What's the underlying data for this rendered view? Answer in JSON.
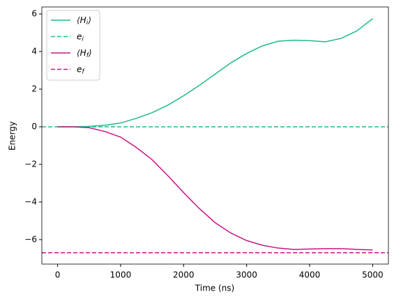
{
  "chart_data": {
    "type": "line",
    "xlabel": "Time (ns)",
    "ylabel": "Energy",
    "x": [
      0,
      250,
      500,
      750,
      1000,
      1250,
      1500,
      1750,
      2000,
      2250,
      2500,
      2750,
      3000,
      3250,
      3500,
      3750,
      4000,
      4250,
      4500,
      4750,
      5000
    ],
    "series": [
      {
        "name": "⟨H_i⟩",
        "color": "#20b98a",
        "style": "solid",
        "values": [
          0,
          0,
          0.02,
          0.08,
          0.2,
          0.45,
          0.75,
          1.15,
          1.65,
          2.2,
          2.8,
          3.4,
          3.9,
          4.3,
          4.55,
          4.6,
          4.58,
          4.52,
          4.7,
          5.1,
          5.75
        ]
      },
      {
        "name": "e_i",
        "color": "#20b98a",
        "style": "dashed",
        "hline": 0
      },
      {
        "name": "⟨H_f⟩",
        "color": "#c71585",
        "style": "solid",
        "values": [
          0,
          0,
          -0.05,
          -0.25,
          -0.55,
          -1.1,
          -1.75,
          -2.6,
          -3.5,
          -4.35,
          -5.1,
          -5.65,
          -6.05,
          -6.3,
          -6.45,
          -6.52,
          -6.5,
          -6.48,
          -6.48,
          -6.52,
          -6.55
        ]
      },
      {
        "name": "e_f",
        "color": "#c71585",
        "style": "dashed",
        "hline": -6.7
      }
    ],
    "xlim": [
      -250,
      5250
    ],
    "ylim": [
      -7.3,
      6.37
    ],
    "xticks": [
      0,
      1000,
      2000,
      3000,
      4000,
      5000
    ],
    "yticks": [
      {
        "value": -6,
        "label": "−6"
      },
      {
        "value": -4,
        "label": "−4"
      },
      {
        "value": -2,
        "label": "−2"
      },
      0,
      2,
      4,
      6
    ],
    "legend": "upper left"
  }
}
